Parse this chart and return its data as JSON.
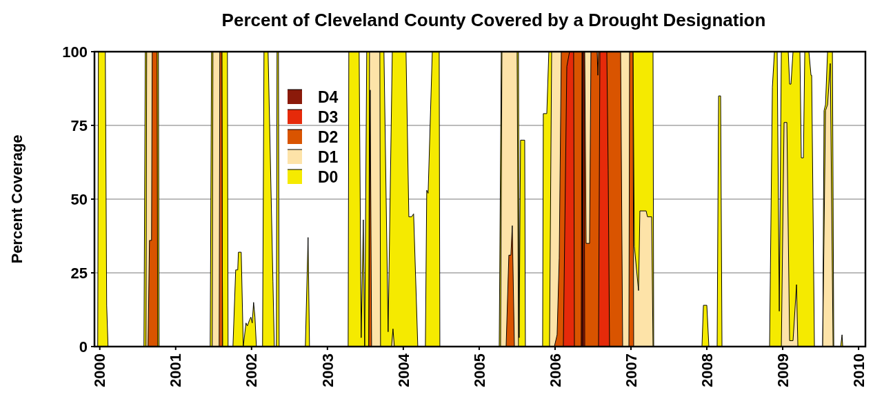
{
  "chart_data": {
    "type": "area",
    "title": "Percent of Cleveland County Covered by a Drought Designation",
    "ylabel": "Percent Coverage",
    "xlim": [
      1999.93,
      2010.09
    ],
    "xticks": [
      2000,
      2001,
      2002,
      2003,
      2004,
      2005,
      2006,
      2007,
      2008,
      2009,
      2010
    ],
    "ylim": [
      0,
      100
    ],
    "yticks": [
      0,
      25,
      50,
      75,
      100
    ],
    "grid": "y",
    "legend": "top left",
    "series": [
      {
        "name": "D0",
        "color": "#f5ea00",
        "x": [
          1999.973,
          1999.982,
          2000.073,
          2000.091,
          2000.109,
          2000.582,
          2000.6,
          2000.773,
          2000.782,
          2001.455,
          2001.473,
          2001.682,
          2001.691,
          2001.755,
          2001.791,
          2001.818,
          2001.827,
          2001.864,
          2001.891,
          2001.927,
          2001.945,
          2001.973,
          2001.991,
          2002.009,
          2002.027,
          2002.045,
          2002.064,
          2002.145,
          2002.164,
          2002.218,
          2002.282,
          2002.3,
          2002.327,
          2002.336,
          2002.355,
          2002.364,
          2002.709,
          2002.745,
          2002.764,
          2003.273,
          2003.282,
          2003.418,
          2003.445,
          2003.473,
          2003.491,
          2003.518,
          2003.745,
          2003.8,
          2003.855,
          2004.036,
          2004.073,
          2004.109,
          2004.136,
          2004.191,
          2004.291,
          2004.309,
          2004.327,
          2004.382,
          2004.473,
          2004.482,
          2005.264,
          2005.291,
          2005.518,
          2005.527,
          2005.545,
          2005.6,
          2005.609,
          2005.836,
          2005.845,
          2005.891,
          2005.918,
          2007.291,
          2007.3,
          2007.936,
          2007.955,
          2008.0,
          2008.027,
          2008.136,
          2008.155,
          2008.182,
          2008.2,
          2008.827,
          2008.864,
          2008.891,
          2008.927,
          2008.955,
          2008.982,
          2009.073,
          2009.091,
          2009.109,
          2009.136,
          2009.227,
          2009.245,
          2009.273,
          2009.291,
          2009.345,
          2009.373,
          2009.382,
          2009.418,
          2009.527,
          2009.545,
          2009.564,
          2009.591,
          2009.655,
          2009.673,
          2009.764,
          2009.782,
          2009.791
        ],
        "values": [
          0,
          100,
          100,
          14,
          0,
          0,
          100,
          100,
          0,
          0,
          100,
          100,
          0,
          0,
          26,
          26,
          32,
          32,
          0,
          8,
          7,
          9,
          10,
          8,
          15,
          10,
          0,
          0,
          100,
          100,
          22,
          0,
          0,
          100,
          100,
          0,
          0,
          37,
          0,
          0,
          100,
          100,
          3,
          43,
          0,
          100,
          100,
          5,
          100,
          100,
          44,
          44,
          45,
          0,
          0,
          53,
          52,
          100,
          100,
          0,
          0,
          100,
          100,
          3,
          70,
          70,
          0,
          0,
          79,
          79,
          100,
          100,
          0,
          0,
          14,
          14,
          0,
          0,
          85,
          85,
          0,
          0,
          88,
          100,
          100,
          12,
          100,
          100,
          89,
          89,
          100,
          100,
          64,
          64,
          100,
          100,
          92,
          92,
          0,
          0,
          80,
          82,
          100,
          100,
          0,
          0,
          4,
          0
        ]
      },
      {
        "name": "D1",
        "color": "#fde3a8",
        "x": [
          2000.609,
          2000.618,
          2000.7,
          2000.709,
          2001.482,
          2001.491,
          2001.609,
          2001.618,
          2003.545,
          2003.555,
          2003.691,
          2003.7,
          2003.845,
          2003.864,
          2003.882,
          2005.282,
          2005.3,
          2005.5,
          2005.518,
          2005.927,
          2005.955,
          2007.027,
          2007.045,
          2007.1,
          2007.118,
          2007.2,
          2007.218,
          2007.273,
          2007.291,
          2008.982,
          2009.018,
          2009.055,
          2009.091,
          2009.136,
          2009.182,
          2009.2,
          2009.527,
          2009.564,
          2009.591,
          2009.627,
          2009.664
        ],
        "values": [
          0,
          100,
          100,
          0,
          0,
          100,
          100,
          0,
          0,
          100,
          100,
          0,
          0,
          6,
          0,
          0,
          100,
          100,
          0,
          0,
          100,
          100,
          34,
          19,
          46,
          46,
          44,
          44,
          0,
          0,
          76,
          76,
          2,
          2,
          21,
          0,
          0,
          80,
          82,
          96,
          0
        ]
      },
      {
        "name": "D2",
        "color": "#d95400",
        "x": [
          2000.636,
          2000.655,
          2000.682,
          2000.691,
          2000.755,
          2000.764,
          2001.573,
          2001.582,
          2001.609,
          2001.618,
          2003.545,
          2003.564,
          2003.582,
          2005.355,
          2005.391,
          2005.418,
          2005.436,
          2005.464,
          2005.991,
          2006.027,
          2006.055,
          2006.082,
          2006.391,
          2006.409,
          2006.455,
          2006.473,
          2006.555,
          2006.564,
          2006.573,
          2006.864,
          2006.891,
          2006.973,
          2006.982,
          2007.027,
          2007.036
        ],
        "values": [
          0,
          36,
          36,
          100,
          100,
          0,
          0,
          100,
          100,
          0,
          0,
          87,
          0,
          0,
          31,
          31,
          41,
          0,
          0,
          4,
          30,
          100,
          100,
          35,
          35,
          100,
          100,
          92,
          100,
          100,
          0,
          0,
          100,
          100,
          0
        ]
      },
      {
        "name": "D3",
        "color": "#e62a0a",
        "x": [
          2006.109,
          2006.155,
          2006.191,
          2006.245,
          2006.255,
          2006.345,
          2006.355,
          2006.382,
          2006.391,
          2006.573,
          2006.591,
          2006.682,
          2006.7,
          2006.718
        ],
        "values": [
          0,
          95,
          100,
          100,
          0,
          0,
          100,
          100,
          0,
          0,
          100,
          100,
          60,
          0
        ]
      },
      {
        "name": "D4",
        "color": "#8b1a0a",
        "x": [
          2006.355,
          2006.364,
          2006.373
        ],
        "values": [
          0,
          100,
          0
        ]
      }
    ]
  }
}
